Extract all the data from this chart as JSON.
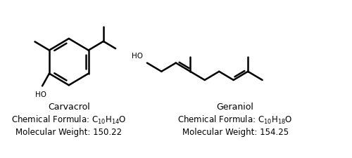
{
  "background_color": "#ffffff",
  "fig_width": 5.0,
  "fig_height": 2.26,
  "dpi": 100,
  "carvacrol_name": "Carvacrol",
  "carvacrol_formula_prefix": "Chemical Formula: C",
  "carvacrol_formula_sub1": "10",
  "carvacrol_formula_mid": "H",
  "carvacrol_formula_sub2": "14",
  "carvacrol_formula_suffix": "O",
  "carvacrol_mw": "Molecular Weight: 150.22",
  "geraniol_name": "Geraniol",
  "geraniol_formula_prefix": "Chemical Formula: C",
  "geraniol_formula_sub1": "10",
  "geraniol_formula_mid": "H",
  "geraniol_formula_sub2": "18",
  "geraniol_formula_suffix": "O",
  "geraniol_mw": "Molecular Weight: 154.25",
  "line_color": "#000000",
  "text_color": "#000000",
  "lw": 1.8,
  "xlim": [
    0,
    10
  ],
  "ylim": [
    0,
    4.52
  ]
}
